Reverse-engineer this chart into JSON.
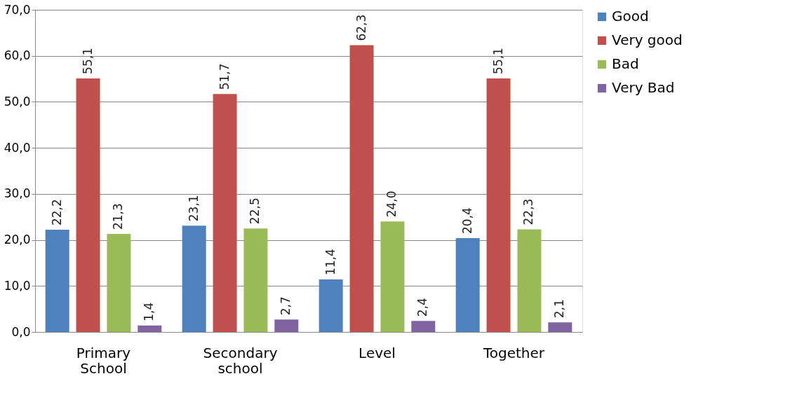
{
  "chart_data": {
    "type": "bar",
    "categories": [
      "Primary School",
      "Secondary school",
      "Level",
      "Together"
    ],
    "series": [
      {
        "name": "Good",
        "color": "#4f81bd",
        "values": [
          22.2,
          23.1,
          11.4,
          20.4
        ],
        "value_labels": [
          "22,2",
          "23,1",
          "11,4",
          "20,4"
        ]
      },
      {
        "name": "Very good",
        "color": "#c0504d",
        "values": [
          55.1,
          51.7,
          62.3,
          55.1
        ],
        "value_labels": [
          "55,1",
          "51,7",
          "62,3",
          "55,1"
        ]
      },
      {
        "name": "Bad",
        "color": "#9bbb59",
        "values": [
          21.3,
          22.5,
          24.0,
          22.3
        ],
        "value_labels": [
          "21,3",
          "22,5",
          "24,0",
          "22,3"
        ]
      },
      {
        "name": "Very Bad",
        "color": "#8064a2",
        "values": [
          1.4,
          2.7,
          2.4,
          2.1
        ],
        "value_labels": [
          "1,4",
          "2,7",
          "2,4",
          "2,1"
        ]
      }
    ],
    "ylim": [
      0,
      70
    ],
    "yticks": [
      {
        "value": 0,
        "label": "0,0"
      },
      {
        "value": 10,
        "label": "10,0"
      },
      {
        "value": 20,
        "label": "20,0"
      },
      {
        "value": 30,
        "label": "30,0"
      },
      {
        "value": 40,
        "label": "40,0"
      },
      {
        "value": 50,
        "label": "50,0"
      },
      {
        "value": 60,
        "label": "60,0"
      },
      {
        "value": 70,
        "label": "70,0"
      }
    ],
    "grid": "y",
    "legend": "right"
  }
}
